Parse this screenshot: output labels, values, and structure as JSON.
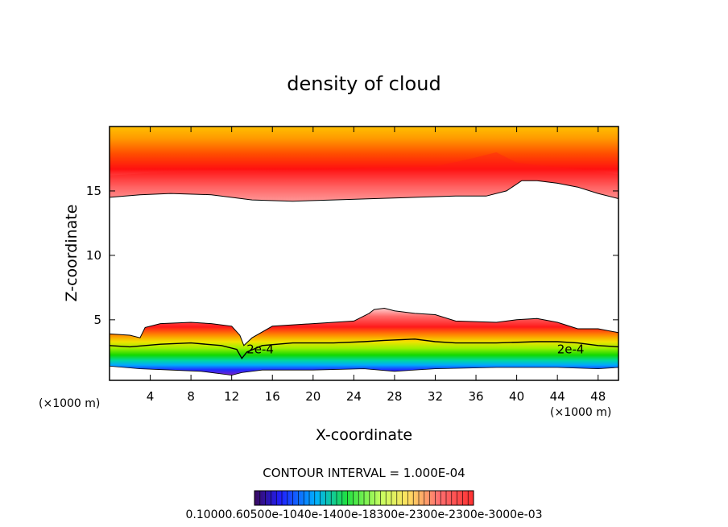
{
  "chart_data": {
    "type": "contour",
    "title": "density of cloud",
    "xlabel": "X-coordinate",
    "ylabel": "Z-coordinate",
    "x_unit_left": "(×1000 m)",
    "x_unit_right": "(×1000 m)",
    "xlim": [
      0,
      50
    ],
    "ylim": [
      0.3,
      20
    ],
    "x_ticks": [
      4,
      8,
      12,
      16,
      20,
      24,
      28,
      32,
      36,
      40,
      44,
      48
    ],
    "y_ticks": [
      5,
      10,
      15
    ],
    "contour_interval_text": "CONTOUR INTERVAL = 1.000E-04",
    "contour_labels": [
      {
        "text": "2e-4",
        "x": 14.8,
        "z": 2.7
      },
      {
        "text": "2e-4",
        "x": 45.3,
        "z": 2.7
      }
    ],
    "colorbar_tick_text": "0.10000.60500e-1040e-1400e-18300e-2300e-2300e-3000e-03",
    "upper_layer": {
      "base_boundary": [
        [
          0,
          14.5
        ],
        [
          3,
          14.7
        ],
        [
          6,
          14.8
        ],
        [
          10,
          14.7
        ],
        [
          14,
          14.3
        ],
        [
          18,
          14.2
        ],
        [
          22,
          14.3
        ],
        [
          26,
          14.4
        ],
        [
          30,
          14.5
        ],
        [
          34,
          14.6
        ],
        [
          37,
          14.6
        ],
        [
          39,
          15.0
        ],
        [
          40.5,
          15.8
        ],
        [
          42,
          15.8
        ],
        [
          44,
          15.6
        ],
        [
          46,
          15.3
        ],
        [
          48,
          14.8
        ],
        [
          50,
          14.4
        ]
      ],
      "core_boundary": [
        [
          0,
          16.2
        ],
        [
          4,
          16.4
        ],
        [
          8,
          16.5
        ],
        [
          14,
          16.5
        ],
        [
          20,
          16.6
        ],
        [
          26,
          16.8
        ],
        [
          32,
          16.9
        ],
        [
          36,
          17.6
        ],
        [
          38,
          18.0
        ],
        [
          40,
          17.2
        ],
        [
          42,
          17.0
        ],
        [
          46,
          16.7
        ],
        [
          50,
          16.3
        ]
      ]
    },
    "lower_layer": {
      "top_boundary": [
        [
          0,
          3.9
        ],
        [
          2,
          3.8
        ],
        [
          3,
          3.6
        ],
        [
          3.5,
          4.4
        ],
        [
          5,
          4.7
        ],
        [
          8,
          4.8
        ],
        [
          10,
          4.7
        ],
        [
          12,
          4.5
        ],
        [
          12.8,
          3.8
        ],
        [
          13.2,
          3.0
        ],
        [
          14,
          3.6
        ],
        [
          16,
          4.5
        ],
        [
          20,
          4.7
        ],
        [
          24,
          4.9
        ],
        [
          25.5,
          5.5
        ],
        [
          26,
          5.8
        ],
        [
          27,
          5.9
        ],
        [
          28,
          5.7
        ],
        [
          30,
          5.5
        ],
        [
          32,
          5.4
        ],
        [
          34,
          4.9
        ],
        [
          38,
          4.8
        ],
        [
          40,
          5.0
        ],
        [
          42,
          5.1
        ],
        [
          44,
          4.8
        ],
        [
          46,
          4.3
        ],
        [
          48,
          4.3
        ],
        [
          50,
          4.0
        ]
      ],
      "contour_2e4": [
        [
          0,
          3.0
        ],
        [
          2,
          2.9
        ],
        [
          5,
          3.1
        ],
        [
          8,
          3.2
        ],
        [
          11,
          3.0
        ],
        [
          12.5,
          2.7
        ],
        [
          13,
          2.0
        ],
        [
          13.5,
          2.5
        ],
        [
          15,
          3.0
        ],
        [
          18,
          3.2
        ],
        [
          22,
          3.2
        ],
        [
          25,
          3.3
        ],
        [
          27,
          3.4
        ],
        [
          30,
          3.5
        ],
        [
          32,
          3.3
        ],
        [
          34,
          3.2
        ],
        [
          38,
          3.2
        ],
        [
          42,
          3.3
        ],
        [
          44,
          3.3
        ],
        [
          46,
          3.2
        ],
        [
          48,
          3.0
        ],
        [
          50,
          2.9
        ]
      ],
      "base": [
        [
          0,
          1.4
        ],
        [
          3,
          1.2
        ],
        [
          6,
          1.1
        ],
        [
          9,
          1.0
        ],
        [
          12,
          0.7
        ],
        [
          13,
          0.9
        ],
        [
          15,
          1.1
        ],
        [
          20,
          1.1
        ],
        [
          25,
          1.2
        ],
        [
          28,
          1.0
        ],
        [
          32,
          1.2
        ],
        [
          38,
          1.3
        ],
        [
          44,
          1.3
        ],
        [
          48,
          1.2
        ],
        [
          50,
          1.3
        ]
      ]
    }
  }
}
